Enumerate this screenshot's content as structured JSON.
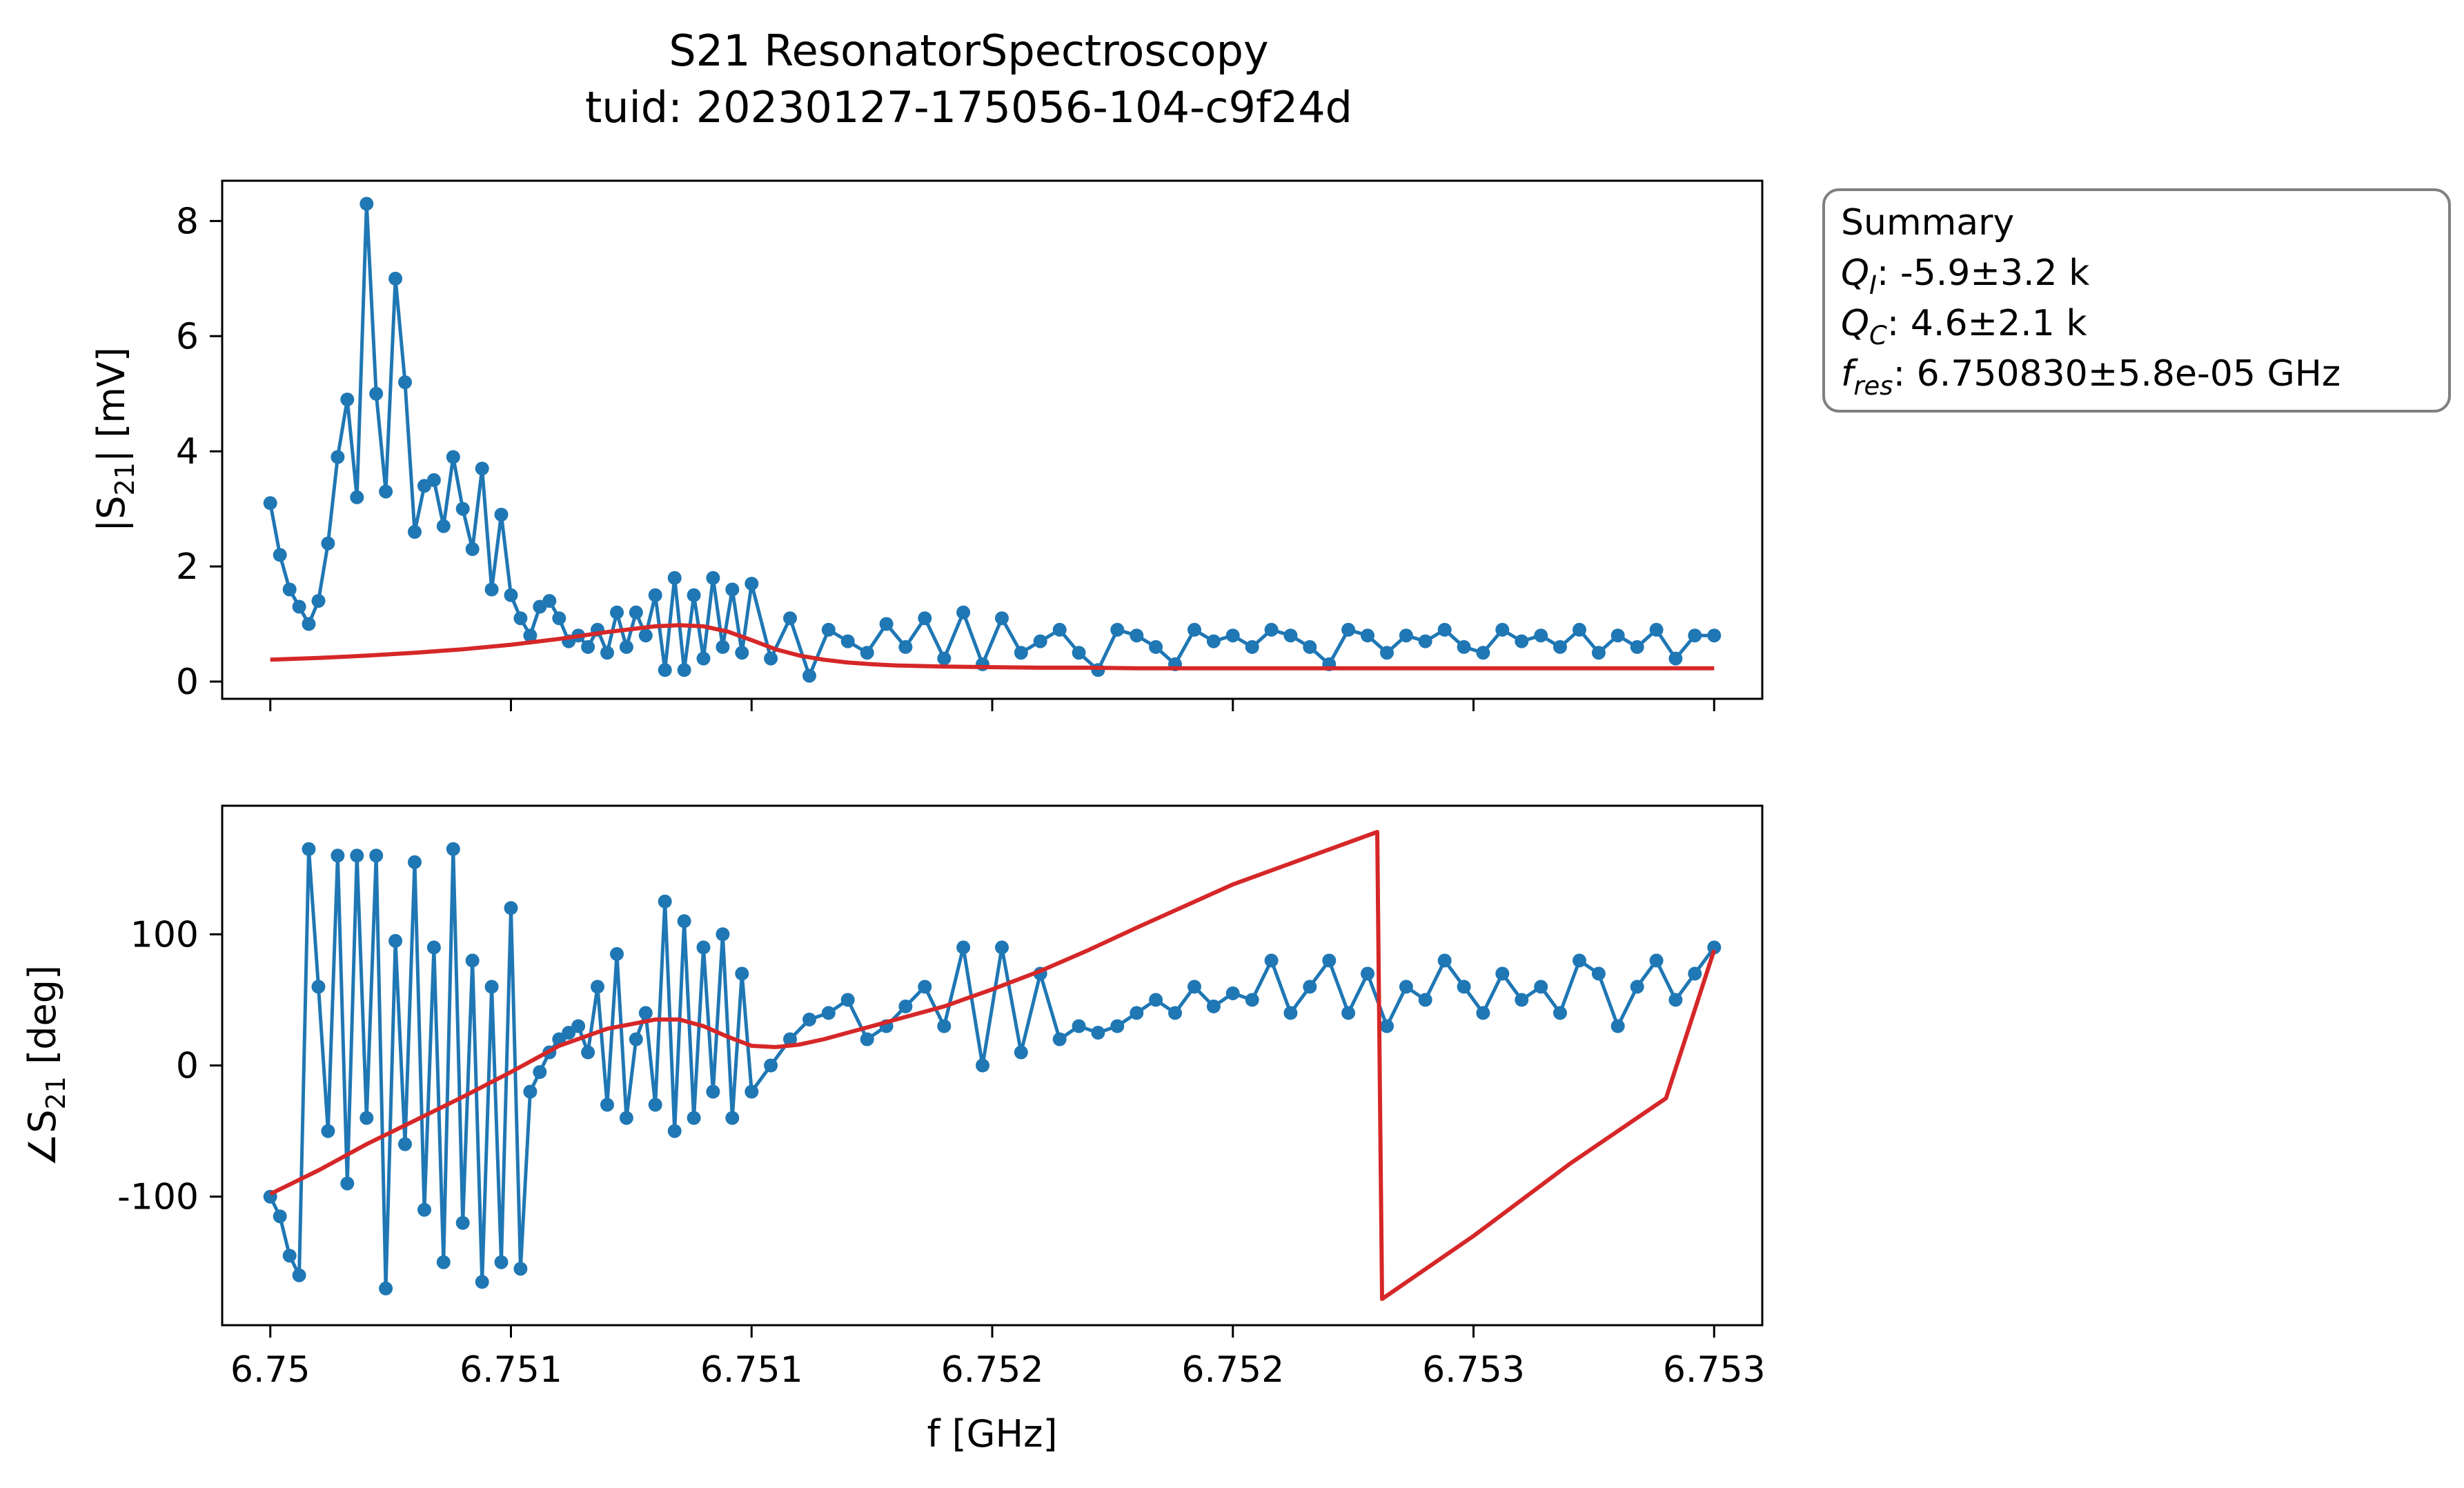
{
  "figure": {
    "title_line1": "S21 ResonatorSpectroscopy",
    "title_line2": "tuid: 20230127-175056-104-c9f24d"
  },
  "summary": {
    "heading": "Summary",
    "rows": [
      {
        "sym": "Q",
        "sub": "I",
        "value": ": -5.9±3.2 k"
      },
      {
        "sym": "Q",
        "sub": "C",
        "value": ": 4.6±2.1 k"
      },
      {
        "sym": "f",
        "sub": "res",
        "value": ": 6.750830±5.8e-05 GHz"
      }
    ]
  },
  "colors": {
    "data": "#1f77b4",
    "fit": "#d62728"
  },
  "chart_data": [
    {
      "type": "line",
      "panel": "magnitude",
      "ylabel": "|S21| [mV]",
      "xlabel": "",
      "xlim": [
        6.7499,
        6.7531
      ],
      "ylim": [
        -0.3,
        8.7
      ],
      "x_ticks": [
        6.75,
        6.7505,
        6.751,
        6.7515,
        6.752,
        6.7525,
        6.753
      ],
      "x_tick_labels": [],
      "y_ticks": [
        0,
        2,
        4,
        6,
        8
      ],
      "y_tick_labels": [
        "0",
        "2",
        "4",
        "6",
        "8"
      ],
      "series": [
        {
          "role": "data",
          "x": [
            6.75,
            6.75002,
            6.75004,
            6.75006,
            6.75008,
            6.7501,
            6.75012,
            6.75014,
            6.75016,
            6.75018,
            6.7502,
            6.75022,
            6.75024,
            6.75026,
            6.75028,
            6.7503,
            6.75032,
            6.75034,
            6.75036,
            6.75038,
            6.7504,
            6.75042,
            6.75044,
            6.75046,
            6.75048,
            6.7505,
            6.75052,
            6.75054,
            6.75056,
            6.75058,
            6.7506,
            6.75062,
            6.75064,
            6.75066,
            6.75068,
            6.7507,
            6.75072,
            6.75074,
            6.75076,
            6.75078,
            6.7508,
            6.75082,
            6.75084,
            6.75086,
            6.75088,
            6.7509,
            6.75092,
            6.75094,
            6.75096,
            6.75098,
            6.751,
            6.75104,
            6.75108,
            6.75112,
            6.75116,
            6.7512,
            6.75124,
            6.75128,
            6.75132,
            6.75136,
            6.7514,
            6.75144,
            6.75148,
            6.75152,
            6.75156,
            6.7516,
            6.75164,
            6.75168,
            6.75172,
            6.75176,
            6.7518,
            6.75184,
            6.75188,
            6.75192,
            6.75196,
            6.752,
            6.75204,
            6.75208,
            6.75212,
            6.75216,
            6.7522,
            6.75224,
            6.75228,
            6.75232,
            6.75236,
            6.7524,
            6.75244,
            6.75248,
            6.75252,
            6.75256,
            6.7526,
            6.75264,
            6.75268,
            6.75272,
            6.75276,
            6.7528,
            6.75284,
            6.75288,
            6.75292,
            6.75296,
            6.753
          ],
          "y": [
            3.1,
            2.2,
            1.6,
            1.3,
            1.0,
            1.4,
            2.4,
            3.9,
            4.9,
            3.2,
            8.3,
            5.0,
            3.3,
            7.0,
            5.2,
            2.6,
            3.4,
            3.5,
            2.7,
            3.9,
            3.0,
            2.3,
            3.7,
            1.6,
            2.9,
            1.5,
            1.1,
            0.8,
            1.3,
            1.4,
            1.1,
            0.7,
            0.8,
            0.6,
            0.9,
            0.5,
            1.2,
            0.6,
            1.2,
            0.8,
            1.5,
            0.2,
            1.8,
            0.2,
            1.5,
            0.4,
            1.8,
            0.6,
            1.6,
            0.5,
            1.7,
            0.4,
            1.1,
            0.1,
            0.9,
            0.7,
            0.5,
            1.0,
            0.6,
            1.1,
            0.4,
            1.2,
            0.3,
            1.1,
            0.5,
            0.7,
            0.9,
            0.5,
            0.2,
            0.9,
            0.8,
            0.6,
            0.3,
            0.9,
            0.7,
            0.8,
            0.6,
            0.9,
            0.8,
            0.6,
            0.3,
            0.9,
            0.8,
            0.5,
            0.8,
            0.7,
            0.9,
            0.6,
            0.5,
            0.9,
            0.7,
            0.8,
            0.6,
            0.9,
            0.5,
            0.8,
            0.6,
            0.9,
            0.4,
            0.8,
            0.8
          ]
        },
        {
          "role": "fit",
          "x": [
            6.75,
            6.7501,
            6.7502,
            6.7503,
            6.7504,
            6.7505,
            6.7506,
            6.7507,
            6.7508,
            6.75085,
            6.7509,
            6.75095,
            6.751,
            6.75105,
            6.7511,
            6.75115,
            6.7512,
            6.75125,
            6.7513,
            6.7514,
            6.7515,
            6.7516,
            6.7517,
            6.7518,
            6.752,
            6.7522,
            6.7524,
            6.7526,
            6.7528,
            6.753
          ],
          "y": [
            0.38,
            0.41,
            0.45,
            0.5,
            0.56,
            0.64,
            0.74,
            0.86,
            0.96,
            0.98,
            0.96,
            0.87,
            0.72,
            0.56,
            0.45,
            0.38,
            0.33,
            0.3,
            0.28,
            0.26,
            0.25,
            0.24,
            0.24,
            0.23,
            0.23,
            0.23,
            0.23,
            0.23,
            0.23,
            0.23
          ]
        }
      ]
    },
    {
      "type": "line",
      "panel": "phase",
      "ylabel": "∠S21 [deg]",
      "xlabel": "f [GHz]",
      "xlim": [
        6.7499,
        6.7531
      ],
      "ylim": [
        -198,
        198
      ],
      "x_ticks": [
        6.75,
        6.7505,
        6.751,
        6.7515,
        6.752,
        6.7525,
        6.753
      ],
      "x_tick_labels": [
        "6.75",
        "6.751",
        "6.751",
        "6.752",
        "6.752",
        "6.753",
        "6.753"
      ],
      "y_ticks": [
        -100,
        0,
        100
      ],
      "y_tick_labels": [
        "-100",
        "0",
        "100"
      ],
      "series": [
        {
          "role": "data",
          "x": [
            6.75,
            6.75002,
            6.75004,
            6.75006,
            6.75008,
            6.7501,
            6.75012,
            6.75014,
            6.75016,
            6.75018,
            6.7502,
            6.75022,
            6.75024,
            6.75026,
            6.75028,
            6.7503,
            6.75032,
            6.75034,
            6.75036,
            6.75038,
            6.7504,
            6.75042,
            6.75044,
            6.75046,
            6.75048,
            6.7505,
            6.75052,
            6.75054,
            6.75056,
            6.75058,
            6.7506,
            6.75062,
            6.75064,
            6.75066,
            6.75068,
            6.7507,
            6.75072,
            6.75074,
            6.75076,
            6.75078,
            6.7508,
            6.75082,
            6.75084,
            6.75086,
            6.75088,
            6.7509,
            6.75092,
            6.75094,
            6.75096,
            6.75098,
            6.751,
            6.75104,
            6.75108,
            6.75112,
            6.75116,
            6.7512,
            6.75124,
            6.75128,
            6.75132,
            6.75136,
            6.7514,
            6.75144,
            6.75148,
            6.75152,
            6.75156,
            6.7516,
            6.75164,
            6.75168,
            6.75172,
            6.75176,
            6.7518,
            6.75184,
            6.75188,
            6.75192,
            6.75196,
            6.752,
            6.75204,
            6.75208,
            6.75212,
            6.75216,
            6.7522,
            6.75224,
            6.75228,
            6.75232,
            6.75236,
            6.7524,
            6.75244,
            6.75248,
            6.75252,
            6.75256,
            6.7526,
            6.75264,
            6.75268,
            6.75272,
            6.75276,
            6.7528,
            6.75284,
            6.75288,
            6.75292,
            6.75296,
            6.753
          ],
          "y": [
            -100,
            -115,
            -145,
            -160,
            165,
            60,
            -50,
            160,
            -90,
            160,
            -40,
            160,
            -170,
            95,
            -60,
            155,
            -110,
            90,
            -150,
            165,
            -120,
            80,
            -165,
            60,
            -150,
            120,
            -155,
            -20,
            -5,
            10,
            20,
            25,
            30,
            10,
            60,
            -30,
            85,
            -40,
            20,
            40,
            -30,
            125,
            -50,
            110,
            -40,
            90,
            -20,
            100,
            -40,
            70,
            -20,
            0,
            20,
            35,
            40,
            50,
            20,
            30,
            45,
            60,
            30,
            90,
            0,
            90,
            10,
            70,
            20,
            30,
            25,
            30,
            40,
            50,
            40,
            60,
            45,
            55,
            50,
            80,
            40,
            60,
            80,
            40,
            70,
            30,
            60,
            50,
            80,
            60,
            40,
            70,
            50,
            60,
            40,
            80,
            70,
            30,
            60,
            80,
            50,
            70,
            90
          ]
        },
        {
          "role": "fit",
          "x": [
            6.75,
            6.7501,
            6.7502,
            6.7503,
            6.7504,
            6.7505,
            6.7506,
            6.7507,
            6.7508,
            6.75085,
            6.7509,
            6.75095,
            6.751,
            6.75105,
            6.7511,
            6.75115,
            6.7512,
            6.75125,
            6.7513,
            6.7514,
            6.7515,
            6.7516,
            6.7517,
            6.7518,
            6.752,
            6.7523,
            6.75231,
            6.7525,
            6.7527,
            6.7529,
            6.753
          ],
          "y": [
            -98,
            -80,
            -60,
            -42,
            -24,
            -5,
            15,
            28,
            35,
            35,
            30,
            22,
            15,
            14,
            16,
            20,
            25,
            30,
            35,
            45,
            58,
            72,
            88,
            105,
            138,
            178,
            -178,
            -130,
            -75,
            -25,
            88
          ]
        }
      ]
    }
  ]
}
